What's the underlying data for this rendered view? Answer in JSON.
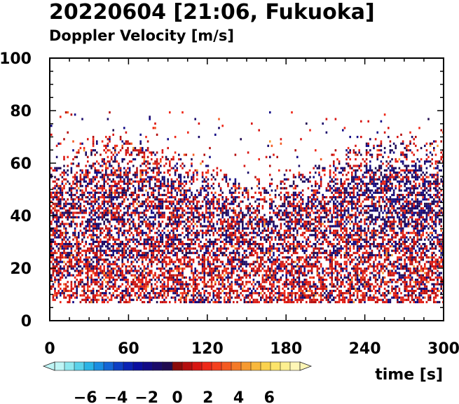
{
  "title": "20220604 [21:06, Fukuoka]",
  "subtitle": "Doppler Velocity [m/s]",
  "chart_data": {
    "type": "heatmap",
    "xlabel": "time [s]",
    "ylabel": "",
    "xlim": [
      0,
      300
    ],
    "ylim": [
      0,
      100
    ],
    "x_ticks": [
      "0",
      "60",
      "120",
      "180",
      "240",
      "300"
    ],
    "y_ticks": [
      "0",
      "20",
      "40",
      "60",
      "80",
      "100"
    ],
    "data_height_range": [
      7.5,
      80
    ],
    "colorbar": {
      "label": "Doppler Velocity [m/s]",
      "range": [
        -8,
        8
      ],
      "ticks": [
        "−6",
        "−4",
        "−2",
        "0",
        "2",
        "4",
        "6"
      ],
      "tick_values": [
        -6,
        -4,
        -2,
        0,
        2,
        4,
        6
      ],
      "colors_negative": [
        "#bff5f5",
        "#8fe8ef",
        "#5ad2ea",
        "#2ab4e6",
        "#1a8ee2",
        "#1466d6",
        "#0d3fc4",
        "#0a22b4",
        "#0a0ea0",
        "#120a86",
        "#1a0a6a",
        "#200a50"
      ],
      "colors_positive": [
        "#8a0a0a",
        "#b40e0e",
        "#d81612",
        "#ee2818",
        "#f4401e",
        "#f45a22",
        "#f47a28",
        "#f69a30",
        "#f8b83c",
        "#fad24e",
        "#fce46a",
        "#fdf090",
        "#fef6b6"
      ]
    }
  }
}
